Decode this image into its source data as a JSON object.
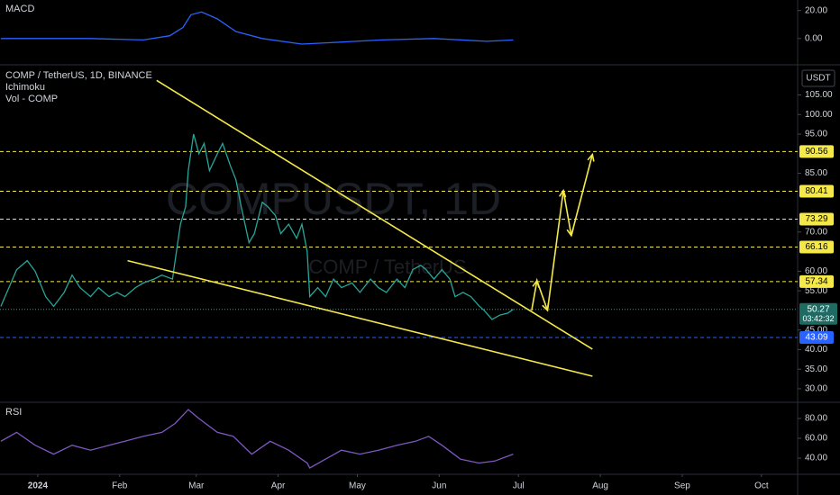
{
  "chart_data": [
    {
      "type": "line",
      "title": "MACD",
      "xlim": [
        -14.3,
        287.7
      ],
      "ylim": [
        -17.5,
        26.25
      ],
      "yticks": [
        {
          "value": 20,
          "label": "20.00"
        },
        {
          "value": 0,
          "label": "0.00"
        }
      ],
      "x": [
        -14,
        20,
        40,
        50,
        55,
        58,
        62,
        68,
        75,
        85,
        100,
        110,
        130,
        150,
        170,
        180
      ],
      "series": [
        {
          "name": "MACD",
          "color": "#2962ff",
          "values": [
            0,
            0,
            -1,
            2,
            8,
            17,
            19,
            14,
            5,
            0,
            -4,
            -3,
            -1,
            0,
            -2,
            -1
          ]
        }
      ]
    },
    {
      "type": "line",
      "title": "COMP / TetherUS, 1D, BINANCE",
      "indicators": [
        "Ichimoku",
        "Vol - COMP"
      ],
      "watermark": [
        "COMPUSDT, 1D",
        "COMP / TetherUS"
      ],
      "currency": "USDT",
      "xlim": [
        -14.3,
        287.7
      ],
      "ylim": [
        27,
        112
      ],
      "yticks": [
        {
          "value": 105,
          "label": "105.00"
        },
        {
          "value": 100,
          "label": "100.00"
        },
        {
          "value": 95,
          "label": "95.00"
        },
        {
          "value": 85,
          "label": "85.00"
        },
        {
          "value": 70,
          "label": "70.00"
        },
        {
          "value": 60,
          "label": "60.00"
        },
        {
          "value": 55,
          "label": "55.00"
        },
        {
          "value": 45,
          "label": "45.00"
        },
        {
          "value": 40,
          "label": "40.00"
        },
        {
          "value": 35,
          "label": "35.00"
        },
        {
          "value": 30,
          "label": "30.00"
        }
      ],
      "x": [
        -14,
        -8,
        -4,
        -1,
        3,
        6,
        10,
        13,
        16,
        20,
        23,
        27,
        30,
        33,
        37,
        40,
        44,
        47,
        51,
        52,
        54,
        56,
        57,
        59,
        61,
        63,
        65,
        68,
        70,
        73,
        75,
        77,
        80,
        82,
        85,
        87,
        90,
        92,
        95,
        98,
        100,
        102,
        103,
        106,
        109,
        112,
        115,
        119,
        122,
        126,
        129,
        132,
        136,
        139,
        142,
        145,
        147,
        150,
        153,
        156,
        158,
        161,
        164,
        167,
        169,
        172,
        175,
        178,
        180
      ],
      "series": [
        {
          "name": "COMP / TetherUS",
          "color": "#26a69a",
          "values": [
            51,
            60.4,
            62.7,
            60,
            53.5,
            51,
            54.6,
            59,
            55.8,
            53.5,
            55.8,
            53.5,
            54.6,
            53.5,
            55.8,
            57,
            58,
            59,
            58,
            62.7,
            72,
            76.5,
            85.7,
            95,
            90,
            92.6,
            85.7,
            90,
            92.6,
            86.8,
            83.4,
            76.5,
            67.3,
            69.6,
            77.6,
            76.5,
            74.2,
            69.6,
            72,
            68.4,
            72,
            65,
            53.5,
            55.8,
            53.5,
            58,
            55.8,
            57,
            54.6,
            58,
            55.8,
            54.6,
            58,
            55.8,
            60.4,
            61.5,
            60.4,
            58,
            60.4,
            58,
            53.5,
            54.6,
            53.5,
            51.2,
            50,
            47.7,
            48.8,
            49.3,
            50.3
          ]
        }
      ],
      "levels": [
        {
          "value": 90.56,
          "color": "#f5e94a"
        },
        {
          "value": 80.41,
          "color": "#f5e94a"
        },
        {
          "value": 73.29,
          "color": "#f5e94a"
        },
        {
          "value": 66.16,
          "color": "#f5e94a"
        },
        {
          "value": 57.34,
          "color": "#f5e94a"
        },
        {
          "value": 43.09,
          "color": "#2962ff"
        }
      ],
      "current_price": {
        "value": 50.27,
        "countdown": "03:42:32",
        "color": "#1e6b64"
      },
      "trendlines": [
        {
          "x": [
            45,
            210
          ],
          "y": [
            108.7,
            40.1
          ]
        },
        {
          "x": [
            34,
            210
          ],
          "y": [
            62.7,
            33.2
          ]
        }
      ],
      "projection": {
        "x": [
          187,
          189,
          193,
          199,
          202,
          210
        ],
        "y": [
          50,
          57.6,
          50,
          80.6,
          69.1,
          89.8
        ]
      }
    },
    {
      "type": "line",
      "title": "RSI",
      "xlim": [
        -14.3,
        287.7
      ],
      "ylim": [
        25.5,
        93.6
      ],
      "yticks": [
        {
          "value": 80,
          "label": "80.00"
        },
        {
          "value": 60,
          "label": "60.00"
        },
        {
          "value": 40,
          "label": "40.00"
        }
      ],
      "xticks": [
        {
          "value": 0,
          "label": "2024"
        },
        {
          "value": 31,
          "label": "Feb"
        },
        {
          "value": 60,
          "label": "Mar"
        },
        {
          "value": 91,
          "label": "Apr"
        },
        {
          "value": 121,
          "label": "May"
        },
        {
          "value": 152,
          "label": "Jun"
        },
        {
          "value": 182,
          "label": "Jul"
        },
        {
          "value": 213,
          "label": "Aug"
        },
        {
          "value": 244,
          "label": "Sep"
        },
        {
          "value": 274,
          "label": "Oct"
        }
      ],
      "x": [
        -14,
        -8,
        -1,
        6,
        13,
        20,
        27,
        33,
        40,
        47,
        52,
        57,
        61,
        68,
        74,
        81,
        88,
        95,
        102,
        103,
        109,
        115,
        122,
        129,
        136,
        143,
        148,
        153,
        160,
        167,
        173,
        180
      ],
      "series": [
        {
          "name": "RSI",
          "color": "#7e57c2",
          "values": [
            57,
            66,
            53,
            44,
            53,
            48,
            53,
            57,
            62,
            66,
            75,
            89,
            80,
            66,
            62,
            44,
            57,
            48,
            35,
            30,
            39,
            48,
            44,
            48,
            53,
            57,
            62,
            53,
            39,
            35,
            37,
            44
          ]
        }
      ]
    }
  ]
}
